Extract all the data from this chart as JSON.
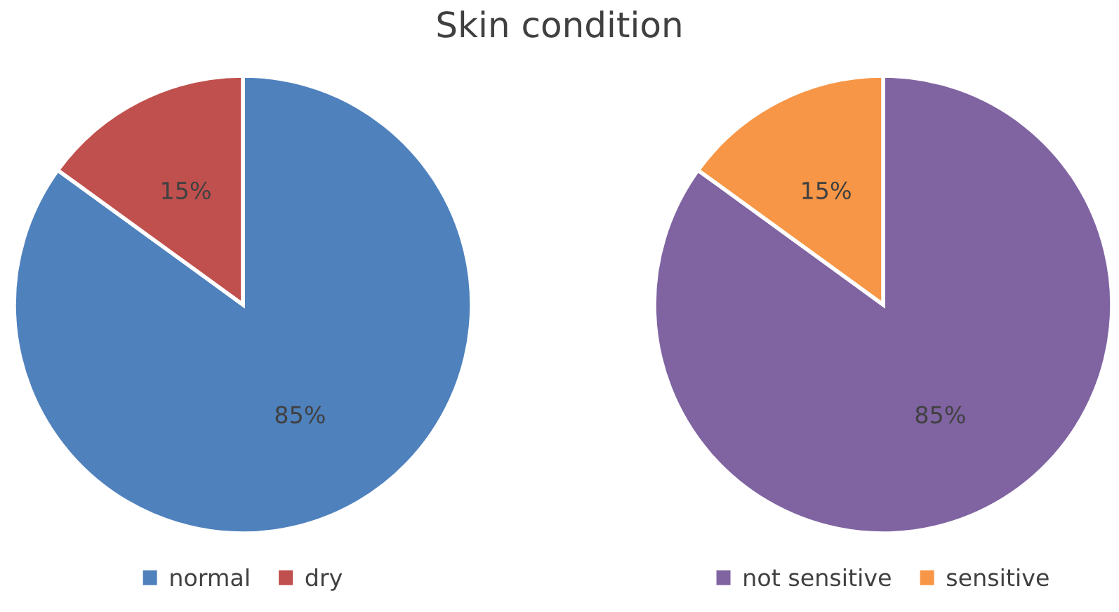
{
  "chart_data": [
    {
      "type": "pie",
      "title": "Skin condition",
      "categories": [
        "normal",
        "dry"
      ],
      "values": [
        85,
        15
      ],
      "colors": [
        "#4f81bd",
        "#c0504d"
      ],
      "value_labels": [
        "85%",
        "15%"
      ],
      "legend": "bottom"
    },
    {
      "type": "pie",
      "categories": [
        "not sensitive",
        "sensitive"
      ],
      "values": [
        85,
        15
      ],
      "colors": [
        "#8064a2",
        "#f79646"
      ],
      "value_labels": [
        "85%",
        "15%"
      ],
      "legend": "bottom"
    }
  ]
}
